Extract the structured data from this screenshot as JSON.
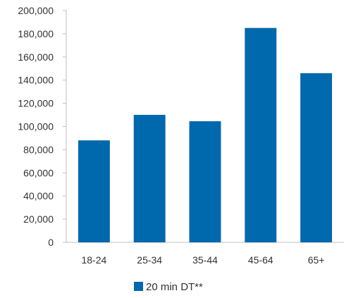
{
  "chart_data": {
    "type": "bar",
    "categories": [
      "18-24",
      "25-34",
      "35-44",
      "45-64",
      "65+"
    ],
    "series": [
      {
        "name": "20 min DT**",
        "values": [
          88000,
          110000,
          104500,
          185000,
          146000
        ],
        "color": "#0068AD"
      }
    ],
    "title": "",
    "xlabel": "",
    "ylabel": "",
    "ylim": [
      0,
      200000
    ],
    "yticks": [
      0,
      20000,
      40000,
      60000,
      80000,
      100000,
      120000,
      140000,
      160000,
      180000,
      200000
    ],
    "ytick_labels": [
      "0",
      "20,000",
      "40,000",
      "60,000",
      "80,000",
      "100,000",
      "120,000",
      "140,000",
      "160,000",
      "180,000",
      "200,000"
    ],
    "grid": false,
    "legend_position": "bottom-center"
  }
}
